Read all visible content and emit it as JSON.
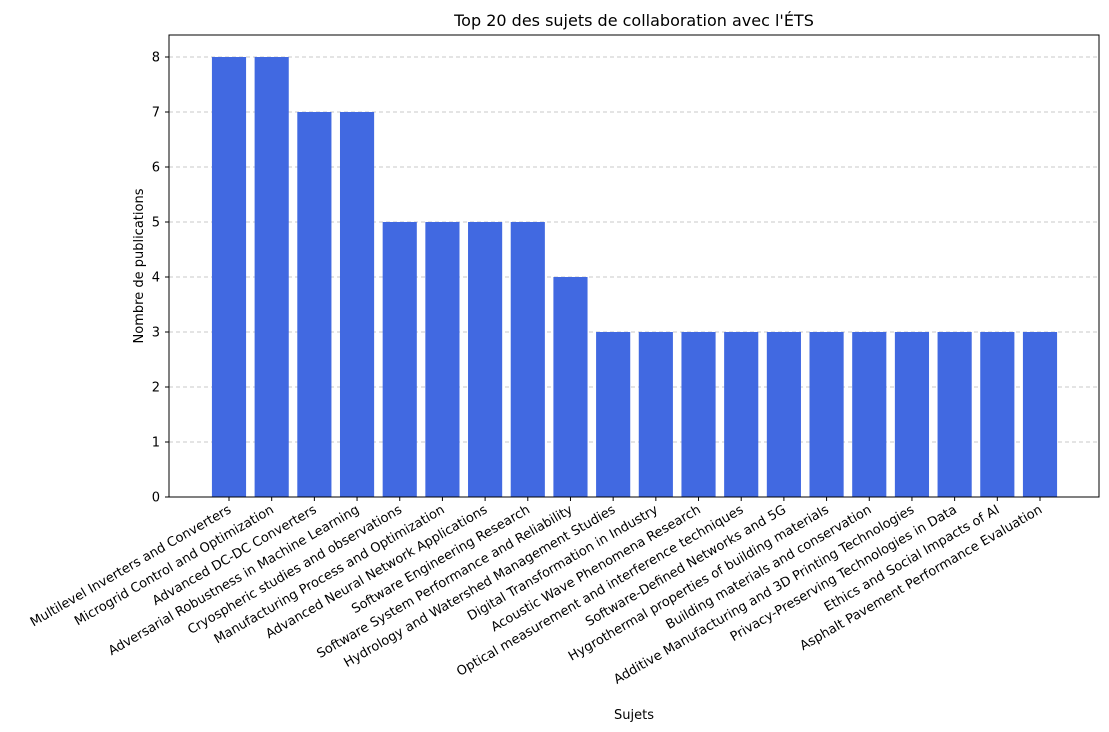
{
  "chart_data": {
    "type": "bar",
    "title": "Top 20 des sujets de collaboration avec l'ÉTS",
    "xlabel": "Sujets",
    "ylabel": "Nombre de publications",
    "ylim": [
      0,
      8.4
    ],
    "yticks": [
      0,
      1,
      2,
      3,
      4,
      5,
      6,
      7,
      8
    ],
    "grid": "y-dashed",
    "bar_color": "#4169e1",
    "categories": [
      "Multilevel Inverters and Converters",
      "Microgrid Control and Optimization",
      "Advanced DC-DC Converters",
      "Adversarial Robustness in Machine Learning",
      "Cryospheric studies and observations",
      "Manufacturing Process and Optimization",
      "Advanced Neural Network Applications",
      "Software Engineering Research",
      "Software System Performance and Reliability",
      "Hydrology and Watershed Management Studies",
      "Digital Transformation in Industry",
      "Acoustic Wave Phenomena Research",
      "Optical measurement and interference techniques",
      "Software-Defined Networks and 5G",
      "Hygrothermal properties of building materials",
      "Building materials and conservation",
      "Additive Manufacturing and 3D Printing Technologies",
      "Privacy-Preserving Technologies in Data",
      "Ethics and Social Impacts of AI",
      "Asphalt Pavement Performance Evaluation"
    ],
    "values": [
      8,
      8,
      7,
      7,
      5,
      5,
      5,
      5,
      4,
      3,
      3,
      3,
      3,
      3,
      3,
      3,
      3,
      3,
      3,
      3
    ]
  }
}
